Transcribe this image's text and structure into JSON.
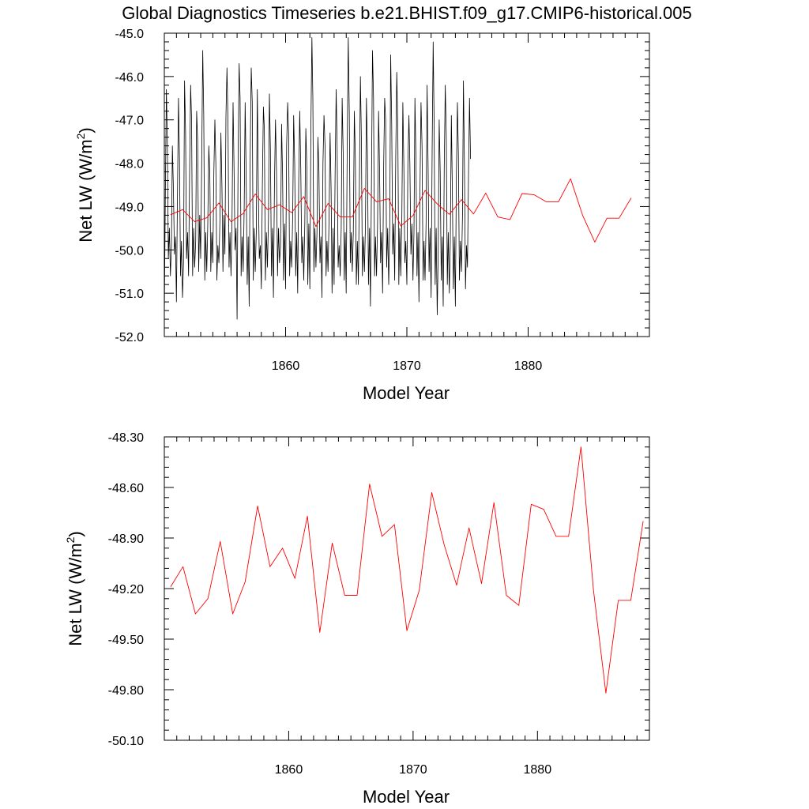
{
  "figure": {
    "title": "Global Diagnostics Timeseries b.e21.BHIST.f09_g17.CMIP6-historical.005"
  },
  "chart_data": [
    {
      "type": "line",
      "title": "Global Diagnostics Timeseries b.e21.BHIST.f09_g17.CMIP6-historical.005",
      "xlabel": "Model Year",
      "ylabel": "Net LW (W/m",
      "ylabel_superscript": "2",
      "ylabel_close": ")",
      "xlim": [
        1850,
        1890
      ],
      "ylim": [
        -52.0,
        -45.0
      ],
      "xticks": [
        1860,
        1870,
        1880
      ],
      "xtick_labels": [
        "1860",
        "1870",
        "1880"
      ],
      "yticks": [
        -45.0,
        -46.0,
        -47.0,
        -48.0,
        -49.0,
        -50.0,
        -51.0,
        -52.0
      ],
      "ytick_labels": [
        "-45.0",
        "-46.0",
        "-47.0",
        "-48.0",
        "-49.0",
        "-50.0",
        "-51.0",
        "-52.0"
      ],
      "series": [
        {
          "name": "monthly",
          "color": "#000000",
          "start_year": 1850.0,
          "step_years": 0.0833333,
          "values": [
            -51.6,
            -48.7,
            -46.3,
            -47.5,
            -50.2,
            -49.5,
            -50.6,
            -49.9,
            -47.6,
            -48.6,
            -50.1,
            -49.7,
            -51.2,
            -48.8,
            -46.5,
            -47.9,
            -50.6,
            -49.8,
            -51.1,
            -50.3,
            -46.1,
            -47.3,
            -50.2,
            -49.6,
            -50.6,
            -48.2,
            -46.2,
            -47.0,
            -50.6,
            -49.5,
            -50.4,
            -49.8,
            -46.8,
            -47.5,
            -50.5,
            -49.2,
            -50.2,
            -48.0,
            -45.4,
            -46.9,
            -50.7,
            -49.6,
            -50.5,
            -49.4,
            -47.6,
            -48.3,
            -50.5,
            -49.6,
            -50.3,
            -48.2,
            -47.0,
            -48.0,
            -50.7,
            -49.9,
            -50.3,
            -49.3,
            -47.3,
            -48.5,
            -50.5,
            -49.2,
            -50.1,
            -46.9,
            -45.8,
            -47.1,
            -50.4,
            -49.6,
            -50.6,
            -49.3,
            -46.6,
            -48.2,
            -50.0,
            -49.5,
            -51.6,
            -47.9,
            -45.7,
            -46.5,
            -50.6,
            -49.7,
            -50.5,
            -49.0,
            -46.6,
            -48.3,
            -50.8,
            -49.7,
            -51.3,
            -47.8,
            -45.8,
            -46.6,
            -50.7,
            -49.5,
            -50.5,
            -49.6,
            -46.3,
            -48.6,
            -50.2,
            -49.9,
            -50.9,
            -48.5,
            -46.7,
            -47.2,
            -50.7,
            -49.6,
            -50.4,
            -49.3,
            -46.4,
            -47.7,
            -50.6,
            -49.5,
            -51.1,
            -48.5,
            -47.0,
            -48.2,
            -50.6,
            -49.5,
            -50.3,
            -49.9,
            -47.1,
            -48.3,
            -50.7,
            -49.4,
            -50.9,
            -47.6,
            -46.6,
            -47.3,
            -50.6,
            -49.8,
            -50.4,
            -49.2,
            -46.9,
            -48.0,
            -50.6,
            -49.6,
            -51.0,
            -48.4,
            -46.8,
            -48.1,
            -50.3,
            -49.7,
            -50.7,
            -49.4,
            -47.2,
            -48.1,
            -50.8,
            -49.4,
            -50.9,
            -47.2,
            -45.1,
            -46.5,
            -50.5,
            -49.5,
            -50.4,
            -49.6,
            -47.4,
            -48.2,
            -50.3,
            -49.7,
            -51.1,
            -48.0,
            -46.9,
            -47.6,
            -50.6,
            -49.8,
            -50.5,
            -49.3,
            -47.3,
            -48.6,
            -51.0,
            -49.5,
            -50.8,
            -48.2,
            -46.3,
            -47.6,
            -50.4,
            -49.9,
            -50.6,
            -49.5,
            -46.5,
            -47.8,
            -50.7,
            -49.6,
            -51.0,
            -47.6,
            -45.1,
            -46.8,
            -50.3,
            -49.6,
            -50.5,
            -49.6,
            -46.8,
            -47.9,
            -50.8,
            -49.8,
            -50.8,
            -48.5,
            -46.0,
            -47.4,
            -50.6,
            -49.7,
            -50.5,
            -49.4,
            -46.5,
            -47.8,
            -50.8,
            -49.5,
            -51.3,
            -48.4,
            -45.4,
            -46.5,
            -50.6,
            -49.7,
            -50.6,
            -49.4,
            -46.8,
            -48.2,
            -50.3,
            -49.6,
            -51.0,
            -48.1,
            -46.5,
            -47.0,
            -50.4,
            -49.5,
            -50.8,
            -49.5,
            -45.5,
            -47.1,
            -50.1,
            -49.4,
            -50.7,
            -47.9,
            -45.9,
            -47.1,
            -50.8,
            -49.5,
            -50.6,
            -49.3,
            -46.6,
            -48.1,
            -50.3,
            -49.8,
            -50.8,
            -48.0,
            -46.9,
            -48.0,
            -50.1,
            -49.4,
            -50.7,
            -49.6,
            -46.5,
            -47.9,
            -50.6,
            -49.6,
            -51.2,
            -48.6,
            -46.6,
            -47.6,
            -50.7,
            -49.8,
            -50.7,
            -49.4,
            -46.2,
            -48.1,
            -50.5,
            -49.5,
            -51.1,
            -47.7,
            -45.2,
            -47.1,
            -50.8,
            -49.5,
            -51.5,
            -50.0,
            -47.0,
            -48.2,
            -50.7,
            -49.7,
            -51.3,
            -48.1,
            -46.2,
            -47.4,
            -50.8,
            -49.6,
            -51.0,
            -49.8,
            -46.9,
            -48.7,
            -50.9,
            -49.7,
            -51.3,
            -48.2,
            -46.6,
            -47.8,
            -50.7,
            -49.8,
            -50.5,
            -49.2,
            -46.1,
            -48.1,
            -50.9,
            -49.9,
            -50.4,
            -48.3,
            -46.5,
            -47.9
          ]
        },
        {
          "name": "annual mean",
          "color": "#ff0000",
          "start_year": 1850.0,
          "step_years": 1.0,
          "values": [
            -49.19,
            -49.07,
            -49.35,
            -49.26,
            -48.92,
            -49.35,
            -49.16,
            -48.71,
            -49.07,
            -48.96,
            -49.14,
            -48.77,
            -49.46,
            -48.93,
            -49.24,
            -49.24,
            -48.58,
            -48.89,
            -48.82,
            -49.45,
            -49.21,
            -48.63,
            -48.94,
            -49.18,
            -48.84,
            -49.17,
            -48.69,
            -49.24,
            -49.3,
            -48.7,
            -48.73,
            -48.89,
            -48.89,
            -48.36,
            -49.21,
            -49.82,
            -49.27,
            -49.27,
            -48.8
          ]
        }
      ]
    },
    {
      "type": "line",
      "title": "",
      "xlabel": "Model Year",
      "ylabel": "Net LW (W/m",
      "ylabel_superscript": "2",
      "ylabel_close": ")",
      "xlim": [
        1850,
        1889
      ],
      "ylim": [
        -50.1,
        -48.3
      ],
      "xticks": [
        1860,
        1870,
        1880
      ],
      "xtick_labels": [
        "1860",
        "1870",
        "1880"
      ],
      "yticks": [
        -48.3,
        -48.6,
        -48.9,
        -49.2,
        -49.5,
        -49.8,
        -50.1
      ],
      "ytick_labels": [
        "-48.30",
        "-48.60",
        "-48.90",
        "-49.20",
        "-49.50",
        "-49.80",
        "-50.10"
      ],
      "series": [
        {
          "name": "annual mean",
          "color": "#ff0000",
          "start_year": 1850.0,
          "step_years": 1.0,
          "values": [
            -49.19,
            -49.07,
            -49.35,
            -49.26,
            -48.92,
            -49.35,
            -49.16,
            -48.71,
            -49.07,
            -48.96,
            -49.14,
            -48.77,
            -49.46,
            -48.93,
            -49.24,
            -49.24,
            -48.58,
            -48.89,
            -48.82,
            -49.45,
            -49.21,
            -48.63,
            -48.94,
            -49.18,
            -48.84,
            -49.17,
            -48.69,
            -49.24,
            -49.3,
            -48.7,
            -48.73,
            -48.89,
            -48.89,
            -48.36,
            -49.21,
            -49.82,
            -49.27,
            -49.27,
            -48.8
          ]
        }
      ]
    }
  ]
}
